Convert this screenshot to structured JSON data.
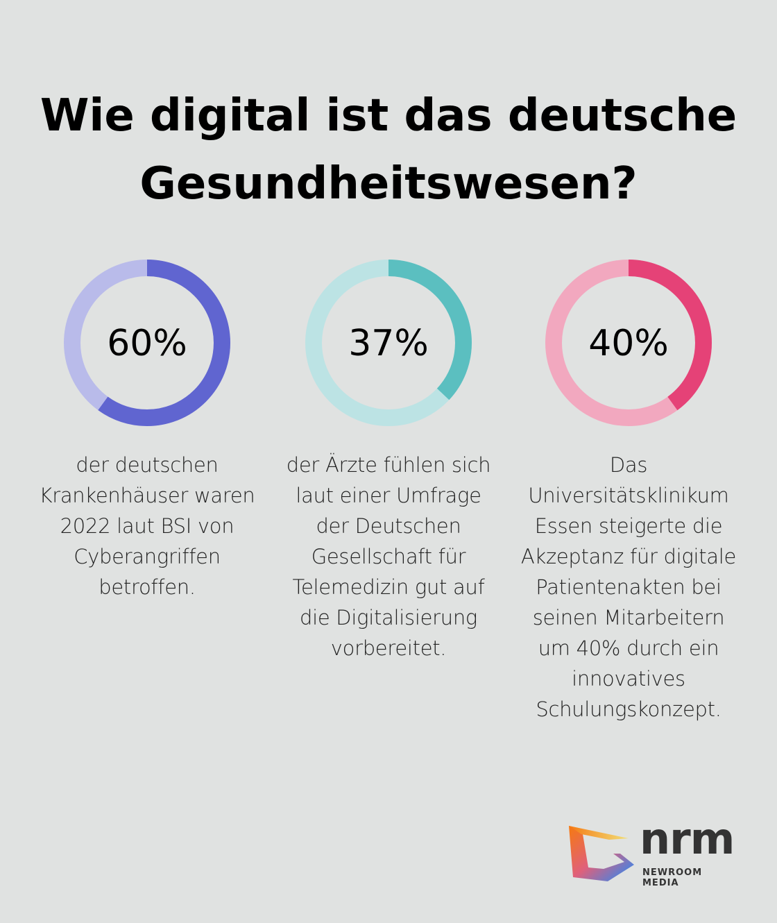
{
  "title_lines": [
    "Wie digital ist das deutsche",
    "Gesundheitswesen?"
  ],
  "chart_data": [
    {
      "type": "pie",
      "variant": "donut",
      "value": 60,
      "label": "60%",
      "color": "#6065d0",
      "track_color": "#b9bbea",
      "description": "der deutschen Krankenhäuser waren 2022 laut BSI von Cyberangriffen betroffen."
    },
    {
      "type": "pie",
      "variant": "donut",
      "value": 37,
      "label": "37%",
      "color": "#5bbfc0",
      "track_color": "#bce3e4",
      "description": "der Ärzte fühlen sich laut einer Umfrage der Deutschen Gesellschaft für Telemedizin gut auf die Digitalisierung vorbereitet."
    },
    {
      "type": "pie",
      "variant": "donut",
      "value": 40,
      "label": "40%",
      "color": "#e54277",
      "track_color": "#f2a8bf",
      "description": "Das Universitätsklinikum Essen steigerte die Akzeptanz für digitale Patientenakten bei seinen Mitarbeitern um 40% durch ein innovatives Schulungskonzept."
    }
  ],
  "logo": {
    "name": "nrm",
    "subtitle": "NEWROOM MEDIA"
  }
}
